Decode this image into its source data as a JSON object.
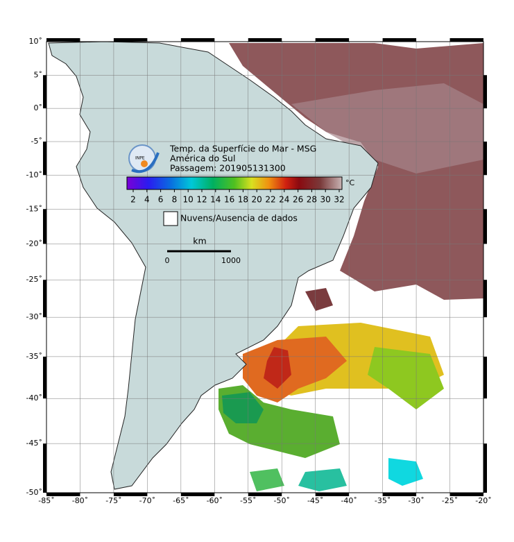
{
  "title": {
    "lines": [
      "Temp. da Superfície do Mar - MSG",
      "América do Sul",
      "Passagem: 201905131300"
    ],
    "logo_text": "INPE"
  },
  "colorbar": {
    "ticks": [
      2,
      4,
      6,
      8,
      10,
      12,
      14,
      16,
      18,
      20,
      22,
      24,
      26,
      28,
      30,
      32
    ],
    "unit": "°C"
  },
  "legend": {
    "label": "Nuvens/Ausencia de dados"
  },
  "scale": {
    "unit": "km",
    "labels": [
      0,
      1000
    ]
  },
  "axes": {
    "lon_ticks": [
      {
        "value": -85,
        "label": "-85˚"
      },
      {
        "value": -80,
        "label": "-80˚"
      },
      {
        "value": -75,
        "label": "-75˚"
      },
      {
        "value": -70,
        "label": "-70˚"
      },
      {
        "value": -65,
        "label": "-65˚"
      },
      {
        "value": -60,
        "label": "-60˚"
      },
      {
        "value": -55,
        "label": "-55˚"
      },
      {
        "value": -50,
        "label": "-50˚"
      },
      {
        "value": -45,
        "label": "-45˚"
      },
      {
        "value": -40,
        "label": "-40˚"
      },
      {
        "value": -35,
        "label": "-35˚"
      },
      {
        "value": -30,
        "label": "-30˚"
      },
      {
        "value": -25,
        "label": "-25˚"
      },
      {
        "value": -20,
        "label": "-20˚"
      }
    ],
    "lat_ticks": [
      {
        "value": 10,
        "label": "10˚"
      },
      {
        "value": 5,
        "label": "5˚"
      },
      {
        "value": 0,
        "label": "0˚"
      },
      {
        "value": -5,
        "label": "-5˚"
      },
      {
        "value": -10,
        "label": "-10˚"
      },
      {
        "value": -15,
        "label": "-15˚"
      },
      {
        "value": -20,
        "label": "-20˚"
      },
      {
        "value": -25,
        "label": "-25˚"
      },
      {
        "value": -30,
        "label": "-30˚"
      },
      {
        "value": -35,
        "label": "-35˚"
      },
      {
        "value": -40,
        "label": "-40˚"
      },
      {
        "value": -45,
        "label": "-45˚"
      },
      {
        "value": -50,
        "label": "-50˚"
      }
    ]
  }
}
